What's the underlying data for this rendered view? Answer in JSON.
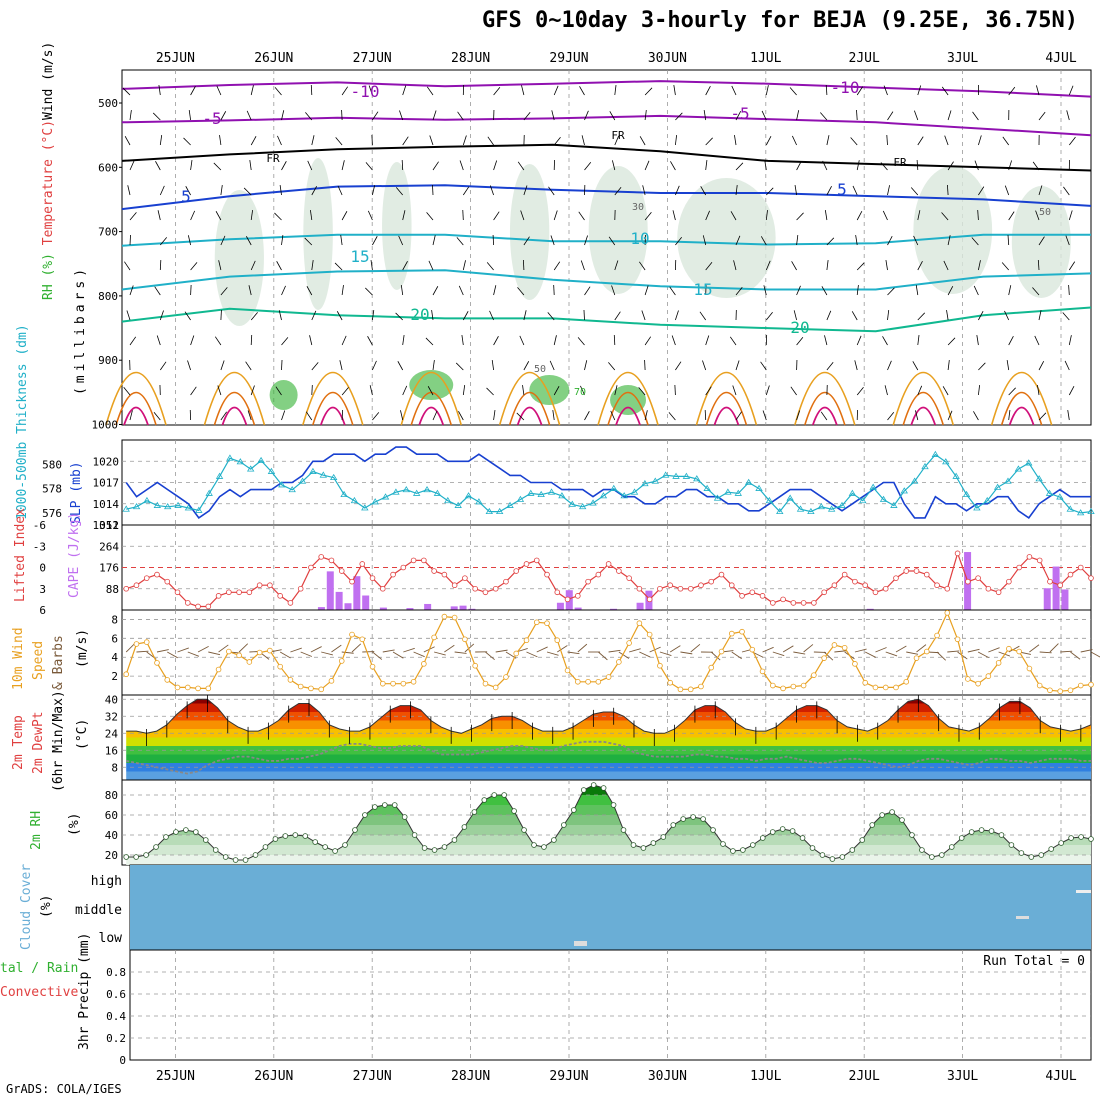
{
  "title": "GFS 0~10day 3-hourly for BEJA (9.25E, 36.75N)",
  "footer": "GrADS: COLA/IGES",
  "run_total": "Run Total = 0",
  "dates": [
    "25JUN",
    "26JUN",
    "27JUN",
    "28JUN",
    "29JUN",
    "30JUN",
    "1JUL",
    "2JUL",
    "3JUL",
    "4JUL"
  ],
  "colors": {
    "purple": "#9010b0",
    "blue": "#1840d0",
    "cyan": "#20b0c8",
    "teal": "#10b890",
    "orange": "#e8a020",
    "red": "#e04040",
    "violet": "#c070f0",
    "green": "#30b030",
    "cloud": "#6aaed6",
    "gray": "#bbbbbb"
  },
  "chart_data": [
    {
      "type": "heatmap",
      "ylabel_parts": [
        "RH (%)",
        "Temperature (°C)",
        "Wind (m/s)"
      ],
      "ylabel2": "(millibars)",
      "yticks": [
        500,
        600,
        700,
        800,
        900,
        1000
      ],
      "contour_labels": [
        "-10",
        "-5",
        "FR",
        "5",
        "10",
        "15",
        "20",
        "30",
        "50",
        "70",
        "-10",
        "-5",
        "FR",
        "5",
        "15",
        "20",
        "30",
        "50"
      ],
      "isotherms": [
        {
          "label": "-10",
          "color": "#9010b0",
          "level_mb": [
            478,
            472,
            468,
            474,
            470,
            466,
            470,
            476,
            482,
            490
          ]
        },
        {
          "label": "-5",
          "color": "#9010b0",
          "level_mb": [
            530,
            527,
            523,
            526,
            524,
            520,
            525,
            530,
            540,
            550
          ]
        },
        {
          "label": "FR",
          "color": "#000000",
          "level_mb": [
            590,
            580,
            572,
            568,
            565,
            575,
            590,
            595,
            600,
            605
          ]
        },
        {
          "label": "5",
          "color": "#1840d0",
          "level_mb": [
            665,
            645,
            630,
            628,
            635,
            640,
            640,
            645,
            650,
            660
          ]
        },
        {
          "label": "10",
          "color": "#20b0c8",
          "level_mb": [
            722,
            712,
            705,
            705,
            715,
            715,
            720,
            718,
            705,
            705
          ]
        },
        {
          "label": "15",
          "color": "#20b0c8",
          "level_mb": [
            790,
            770,
            762,
            760,
            775,
            785,
            790,
            790,
            770,
            765
          ]
        },
        {
          "label": "20",
          "color": "#10b890",
          "level_mb": [
            840,
            820,
            830,
            835,
            835,
            845,
            850,
            855,
            830,
            818
          ]
        }
      ]
    },
    {
      "type": "line",
      "ylabel": "1000-500mb Thickness (dm)",
      "ylabel_right": "SLP (mb)",
      "yticks_left": [
        "576",
        "578",
        "580"
      ],
      "yticks_right": [
        "1011",
        "1014",
        "1017",
        "1020"
      ],
      "ylim_left": [
        575,
        582
      ],
      "ylim_right": [
        1011,
        1023
      ],
      "series": [
        {
          "name": "SLP",
          "color": "#1840d0",
          "values": [
            1017,
            1015,
            1016,
            1017,
            1016,
            1015,
            1014,
            1012,
            1013,
            1015,
            1016,
            1015,
            1016,
            1016,
            1016,
            1017,
            1017,
            1018,
            1020,
            1020,
            1021,
            1021,
            1021,
            1020,
            1021,
            1021,
            1022,
            1022,
            1021,
            1021,
            1021,
            1020,
            1020,
            1020,
            1021,
            1020,
            1019,
            1018,
            1018,
            1017,
            1017,
            1017,
            1016,
            1016,
            1016,
            1015,
            1016,
            1016,
            1015,
            1015,
            1014,
            1014,
            1015,
            1015,
            1016,
            1016,
            1015,
            1015,
            1014,
            1014,
            1013,
            1013,
            1014,
            1015,
            1016,
            1016,
            1016,
            1015,
            1014,
            1013,
            1014,
            1015,
            1016,
            1017,
            1017,
            1014,
            1012,
            1012,
            1015,
            1014,
            1014,
            1013,
            1014,
            1014,
            1015,
            1015,
            1013,
            1012,
            1014,
            1015,
            1016,
            1015,
            1015,
            1015
          ]
        },
        {
          "name": "Thickness",
          "color": "#20b0c8",
          "values": [
            576.3,
            576.5,
            577.0,
            576.6,
            576.5,
            576.6,
            576.4,
            576.2,
            577.6,
            579.0,
            580.5,
            580.2,
            579.6,
            580.3,
            579.4,
            578.3,
            577.9,
            578.6,
            579.4,
            579.1,
            578.9,
            577.5,
            577.0,
            576.4,
            576.9,
            577.3,
            577.7,
            577.9,
            577.6,
            577.9,
            577.6,
            577.0,
            576.6,
            577.4,
            576.9,
            576.1,
            576.1,
            576.6,
            577.1,
            577.6,
            577.5,
            577.7,
            577.4,
            576.7,
            576.5,
            576.8,
            577.4,
            578.0,
            577.4,
            577.7,
            578.4,
            578.6,
            579.1,
            579.0,
            579.0,
            578.8,
            578.0,
            577.2,
            577.7,
            577.6,
            578.5,
            578.0,
            577.0,
            576.1,
            577.2,
            576.3,
            576.1,
            576.5,
            576.3,
            576.6,
            577.6,
            577.0,
            578.1,
            577.1,
            576.6,
            577.8,
            578.6,
            579.8,
            580.8,
            580.2,
            579.0,
            577.5,
            576.4,
            577.0,
            578.1,
            578.6,
            579.6,
            580.1,
            578.8,
            577.6,
            577.3,
            576.3,
            576.0,
            576.1
          ]
        }
      ]
    },
    {
      "type": "bar",
      "ylabel": "Lifted Index",
      "ylabel_right": "CAPE (J/kg)",
      "yticks_left": [
        "-6",
        "-3",
        "0",
        "3",
        "6"
      ],
      "yticks_right": [
        "88",
        "176",
        "264",
        "352"
      ],
      "series": [
        {
          "name": "Lifted Index",
          "color": "#e04040",
          "values": [
            3.0,
            2.5,
            1.5,
            1.0,
            2.0,
            3.5,
            5.0,
            5.5,
            5.5,
            4.0,
            3.5,
            3.5,
            3.5,
            2.5,
            2.5,
            4.0,
            5.0,
            3.0,
            0.0,
            -1.5,
            -1.0,
            0.5,
            2.0,
            -0.5,
            1.5,
            3.0,
            1.0,
            0.0,
            -1.0,
            -1.0,
            0.5,
            1.0,
            2.5,
            1.5,
            3.0,
            3.5,
            3.0,
            2.0,
            0.5,
            -0.5,
            -1.0,
            1.0,
            3.5,
            4.5,
            4.0,
            2.0,
            1.0,
            -0.5,
            0.5,
            1.5,
            3.0,
            4.5,
            3.0,
            2.5,
            3.0,
            3.0,
            2.5,
            2.0,
            1.0,
            2.5,
            4.0,
            3.5,
            4.0,
            5.0,
            4.5,
            5.0,
            5.0,
            5.0,
            3.5,
            2.5,
            1.0,
            2.0,
            2.5,
            3.5,
            3.0,
            1.5,
            0.5,
            0.5,
            1.0,
            2.5,
            3.0,
            -2.0,
            2.0,
            1.5,
            3.0,
            3.5,
            2.0,
            0.0,
            -1.5,
            -1.0,
            2.0,
            2.5,
            1.0,
            0.0,
            1.5
          ]
        },
        {
          "name": "CAPE",
          "color": "#c070f0",
          "values": [
            0,
            0,
            0,
            0,
            0,
            0,
            0,
            0,
            0,
            0,
            0,
            0,
            0,
            0,
            0,
            0,
            0,
            0,
            0,
            0,
            0,
            0,
            12,
            160,
            75,
            28,
            140,
            60,
            0,
            10,
            0,
            0,
            8,
            0,
            25,
            0,
            0,
            15,
            18,
            5,
            0,
            0,
            0,
            0,
            0,
            0,
            0,
            0,
            0,
            30,
            82,
            10,
            0,
            0,
            0,
            5,
            0,
            0,
            30,
            80,
            0,
            0,
            0,
            0,
            0,
            0,
            0,
            0,
            0,
            0,
            0,
            0,
            0,
            0,
            0,
            0,
            0,
            0,
            0,
            0,
            0,
            0,
            0,
            0,
            5,
            0,
            0,
            0,
            0,
            0,
            0,
            0,
            0,
            0,
            0,
            240,
            0,
            0,
            0,
            0,
            0,
            0,
            0,
            0,
            90,
            180,
            85,
            0,
            0,
            0
          ]
        }
      ]
    },
    {
      "type": "line",
      "ylabel": "10m Wind Speed & Barbs (m/s)",
      "yticks": [
        "2",
        "4",
        "6",
        "8"
      ],
      "ylim": [
        0,
        9
      ],
      "series": [
        {
          "name": "Speed",
          "color": "#e8a020",
          "values": [
            2.2,
            5.4,
            5.6,
            3.4,
            1.6,
            0.8,
            0.8,
            0.7,
            0.7,
            2.7,
            4.6,
            4.2,
            3.5,
            4.5,
            4.7,
            3.0,
            1.6,
            0.9,
            0.7,
            0.6,
            1.5,
            3.6,
            6.4,
            5.9,
            3.0,
            1.2,
            1.2,
            1.2,
            1.4,
            3.3,
            6.1,
            8.3,
            8.2,
            5.9,
            3.1,
            1.2,
            0.8,
            1.9,
            4.4,
            5.8,
            7.7,
            7.6,
            5.8,
            2.6,
            1.4,
            1.4,
            1.4,
            1.9,
            3.5,
            5.5,
            7.6,
            6.4,
            3.1,
            1.3,
            0.6,
            0.6,
            0.9,
            2.9,
            4.6,
            6.5,
            6.7,
            4.8,
            2.5,
            1.0,
            0.7,
            0.9,
            1.0,
            2.1,
            3.9,
            5.3,
            5.0,
            3.3,
            1.3,
            0.8,
            0.8,
            0.8,
            1.4,
            3.9,
            4.6,
            6.3,
            8.7,
            5.9,
            1.7,
            1.2,
            2.0,
            3.4,
            4.9,
            4.6,
            2.8,
            1.0,
            0.5,
            0.4,
            0.5,
            1.0,
            1.1
          ]
        }
      ]
    },
    {
      "type": "area",
      "ylabel": "2m Temp 2m DewPt (6hr Min/Max) (°C)",
      "yticks": [
        "8",
        "16",
        "24",
        "32",
        "40"
      ],
      "ylim": [
        2,
        42
      ],
      "series": [
        {
          "name": "2m Temp",
          "color": "#c83020",
          "values": [
            25,
            25,
            24,
            25,
            28,
            33,
            37,
            40,
            40,
            36,
            30,
            27,
            25,
            25,
            27,
            30,
            35,
            38,
            38,
            34,
            28,
            26,
            25,
            25,
            27,
            31,
            35,
            37,
            37,
            35,
            30,
            27,
            25,
            24,
            26,
            28,
            31,
            32,
            32,
            30,
            27,
            25,
            25,
            25,
            27,
            30,
            33,
            34,
            34,
            32,
            28,
            25,
            24,
            24,
            26,
            30,
            35,
            37,
            37,
            34,
            29,
            26,
            25,
            25,
            27,
            31,
            35,
            37,
            37,
            35,
            30,
            27,
            26,
            25,
            27,
            30,
            35,
            39,
            40,
            37,
            31,
            27,
            26,
            25,
            27,
            31,
            36,
            39,
            39,
            36,
            30,
            27,
            26,
            25,
            26,
            28
          ]
        },
        {
          "name": "2m DewPt",
          "color": "#c83020",
          "values": [
            11,
            10,
            9,
            8,
            7,
            6,
            5,
            6,
            9,
            11,
            12,
            13,
            13,
            12,
            11,
            11,
            12,
            12,
            13,
            14,
            16,
            18,
            19,
            19,
            18,
            17,
            17,
            18,
            18,
            18,
            16,
            14,
            14,
            14,
            14,
            15,
            16,
            17,
            18,
            18,
            17,
            16,
            16,
            18,
            19,
            20,
            20,
            20,
            19,
            18,
            15,
            14,
            13,
            13,
            13,
            13,
            14,
            14,
            13,
            13,
            12,
            12,
            11,
            12,
            12,
            13,
            12,
            11,
            10,
            10,
            11,
            12,
            12,
            11,
            10,
            9,
            8,
            9,
            11,
            12,
            12,
            11,
            10,
            9,
            10,
            12,
            12,
            11,
            11,
            10,
            11,
            12,
            12,
            12,
            11,
            11
          ]
        }
      ]
    },
    {
      "type": "area",
      "ylabel": "2m RH (%)",
      "yticks": [
        "20",
        "40",
        "60",
        "80"
      ],
      "ylim": [
        10,
        95
      ],
      "series": [
        {
          "name": "2m RH",
          "color": "#30b030",
          "values": [
            18,
            18,
            20,
            28,
            38,
            43,
            45,
            43,
            35,
            25,
            18,
            15,
            15,
            20,
            28,
            36,
            39,
            40,
            39,
            33,
            28,
            24,
            30,
            45,
            60,
            68,
            70,
            70,
            58,
            40,
            27,
            25,
            28,
            35,
            48,
            63,
            75,
            80,
            80,
            64,
            45,
            30,
            28,
            35,
            50,
            65,
            85,
            90,
            87,
            70,
            45,
            30,
            27,
            32,
            38,
            50,
            56,
            58,
            56,
            45,
            31,
            24,
            25,
            30,
            37,
            43,
            46,
            44,
            37,
            27,
            20,
            16,
            18,
            25,
            35,
            50,
            60,
            63,
            55,
            40,
            25,
            18,
            20,
            28,
            37,
            43,
            45,
            44,
            40,
            30,
            22,
            18,
            20,
            26,
            32,
            37,
            38,
            36
          ]
        }
      ]
    },
    {
      "type": "heatmap",
      "ylabel": "Cloud Cover (%)",
      "yticks": [
        "high",
        "middle",
        "low"
      ],
      "note": "Dense cloud cover band spans full period at all levels"
    },
    {
      "type": "bar",
      "ylabel": "Total / Rain Convective 3hr Precip (mm)",
      "yticks": [
        "0",
        "0.2",
        "0.4",
        "0.6",
        "0.8"
      ],
      "ylim": [
        0,
        1
      ],
      "series": [
        {
          "name": "Total / Rain",
          "color": "#30b030",
          "values": [
            0,
            0,
            0,
            0,
            0,
            0,
            0,
            0,
            0,
            0
          ]
        },
        {
          "name": "Convective",
          "color": "#e04040",
          "values": [
            0,
            0,
            0,
            0,
            0,
            0,
            0,
            0,
            0,
            0
          ]
        }
      ]
    }
  ]
}
